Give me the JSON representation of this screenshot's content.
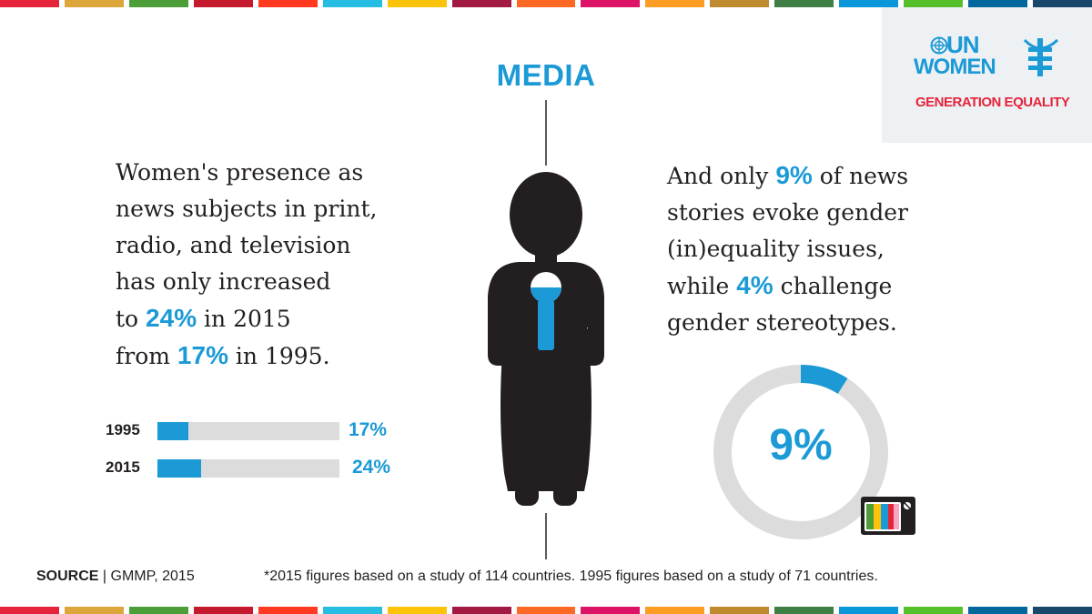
{
  "stripe_colors": [
    "#e5243b",
    "#dda63a",
    "#4c9f38",
    "#c5192d",
    "#ff3a21",
    "#26bde2",
    "#fcc30b",
    "#a21942",
    "#fd6925",
    "#dd1367",
    "#fd9d24",
    "#bf8b2e",
    "#3f7e44",
    "#0a97d9",
    "#56c02b",
    "#00689d",
    "#19486a"
  ],
  "logo": {
    "line1": "UN",
    "line2": "WOMEN",
    "tagline": "GENERATION EQUALITY"
  },
  "title": "MEDIA",
  "left_text": {
    "line1": "Women's presence as",
    "line2": "news subjects in print,",
    "line3": "radio, and television",
    "line4": "has only increased",
    "line5_pre": "to ",
    "line5_hl": "24%",
    "line5_post": " in 2015",
    "line6_pre": "from ",
    "line6_hl": "17%",
    "line6_post": " in 1995."
  },
  "right_text": {
    "line1_pre": "And only ",
    "line1_hl": "9%",
    "line1_post": " of news",
    "line2": "stories evoke gender",
    "line3": "(in)equality issues,",
    "line4_pre": "while ",
    "line4_hl": "4%",
    "line4_post": " challenge",
    "line5": "gender stereotypes."
  },
  "chart_data": [
    {
      "type": "bar",
      "orientation": "horizontal",
      "categories": [
        "1995",
        "2015"
      ],
      "values": [
        17,
        24
      ],
      "value_labels": [
        "17%",
        "24%"
      ],
      "xlim": [
        0,
        100
      ],
      "unit": "%"
    },
    {
      "type": "pie",
      "style": "donut",
      "values": [
        9,
        91
      ],
      "center_label": "9%",
      "colors": [
        "#1b9ad6",
        "#dcdcdc"
      ]
    }
  ],
  "colors": {
    "accent": "#1b9ad6",
    "silhouette": "#231f20",
    "track": "#dcdcdc",
    "logo_bg": "#eef1f4",
    "tagline": "#e5243b"
  },
  "source": {
    "label": "SOURCE",
    "separator": "|",
    "value": "GMMP, 2015"
  },
  "footnote": "*2015 figures based on a study of 114 countries. 1995 figures based on a study of 71 countries."
}
